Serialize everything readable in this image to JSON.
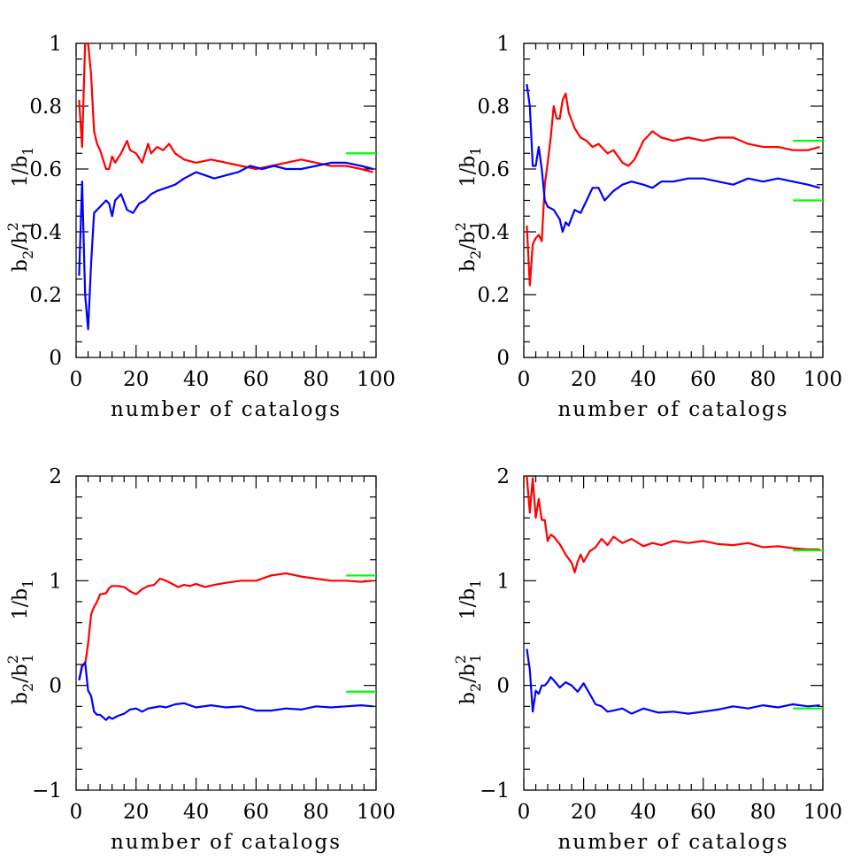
{
  "colors": {
    "series_red": "#ff0000",
    "series_blue": "#0000ff",
    "reference_green": "#00ff00"
  },
  "chart_data": [
    {
      "type": "line",
      "xlabel": "number of catalogs",
      "ylabel_top": [
        "1/b",
        "1"
      ],
      "ylabel_bottom": [
        "b",
        "2",
        "/b",
        "2",
        "1"
      ],
      "xlim": [
        0,
        100
      ],
      "ylim": [
        0,
        1
      ],
      "xticks": [
        0,
        20,
        40,
        60,
        80,
        100
      ],
      "yticks": [
        0,
        0.2,
        0.4,
        0.6,
        0.8,
        1
      ],
      "ytick_labels": [
        "0",
        "0.2",
        "0.4",
        "0.6",
        "0.8",
        "1"
      ],
      "series": [
        {
          "color": "red",
          "x": [
            1,
            2,
            3,
            4,
            5,
            6,
            7,
            8,
            10,
            11,
            12,
            13,
            15,
            17,
            18,
            20,
            22,
            24,
            25,
            27,
            29,
            31,
            33,
            36,
            40,
            45,
            50,
            55,
            60,
            65,
            70,
            75,
            80,
            85,
            90,
            95,
            99
          ],
          "y": [
            0.82,
            0.67,
            1.0,
            1.0,
            0.9,
            0.72,
            0.68,
            0.66,
            0.6,
            0.6,
            0.64,
            0.62,
            0.65,
            0.69,
            0.66,
            0.65,
            0.62,
            0.68,
            0.65,
            0.67,
            0.66,
            0.68,
            0.65,
            0.63,
            0.62,
            0.63,
            0.62,
            0.61,
            0.6,
            0.61,
            0.62,
            0.63,
            0.62,
            0.61,
            0.61,
            0.6,
            0.59
          ]
        },
        {
          "color": "blue",
          "x": [
            1,
            2,
            3,
            4,
            5,
            6,
            7,
            8,
            10,
            11,
            12,
            13,
            15,
            17,
            19,
            21,
            23,
            25,
            27,
            30,
            33,
            36,
            40,
            43,
            46,
            50,
            54,
            58,
            62,
            66,
            70,
            75,
            80,
            85,
            90,
            95,
            99
          ],
          "y": [
            0.26,
            0.56,
            0.2,
            0.09,
            0.3,
            0.46,
            0.47,
            0.48,
            0.5,
            0.49,
            0.45,
            0.5,
            0.52,
            0.47,
            0.46,
            0.49,
            0.5,
            0.52,
            0.53,
            0.54,
            0.55,
            0.57,
            0.59,
            0.58,
            0.57,
            0.58,
            0.59,
            0.61,
            0.6,
            0.61,
            0.6,
            0.6,
            0.61,
            0.62,
            0.62,
            0.61,
            0.6
          ]
        }
      ],
      "reference_lines": [
        {
          "y": 0.65,
          "x": [
            90,
            100
          ]
        }
      ]
    },
    {
      "type": "line",
      "xlabel": "number of catalogs",
      "ylabel_top": [
        "1/b",
        "1"
      ],
      "ylabel_bottom": [
        "b",
        "2",
        "/b",
        "2",
        "1"
      ],
      "xlim": [
        0,
        100
      ],
      "ylim": [
        0,
        1
      ],
      "xticks": [
        0,
        20,
        40,
        60,
        80,
        100
      ],
      "yticks": [
        0,
        0.2,
        0.4,
        0.6,
        0.8,
        1
      ],
      "ytick_labels": [
        "0",
        "0.2",
        "0.4",
        "0.6",
        "0.8",
        "1"
      ],
      "series": [
        {
          "color": "red",
          "x": [
            1,
            2,
            3,
            4,
            5,
            6,
            7,
            8,
            9,
            10,
            11,
            12,
            13,
            14,
            15,
            17,
            19,
            21,
            23,
            25,
            28,
            30,
            33,
            35,
            37,
            40,
            43,
            46,
            50,
            55,
            60,
            65,
            70,
            75,
            80,
            85,
            90,
            95,
            99
          ],
          "y": [
            0.42,
            0.23,
            0.36,
            0.38,
            0.39,
            0.37,
            0.55,
            0.62,
            0.7,
            0.8,
            0.76,
            0.76,
            0.82,
            0.84,
            0.78,
            0.73,
            0.7,
            0.69,
            0.67,
            0.68,
            0.65,
            0.66,
            0.62,
            0.61,
            0.63,
            0.69,
            0.72,
            0.7,
            0.69,
            0.7,
            0.69,
            0.7,
            0.7,
            0.68,
            0.67,
            0.67,
            0.66,
            0.66,
            0.67
          ]
        },
        {
          "color": "blue",
          "x": [
            1,
            2,
            3,
            4,
            5,
            6,
            7,
            8,
            10,
            12,
            13,
            14,
            15,
            17,
            19,
            21,
            23,
            25,
            27,
            30,
            33,
            36,
            40,
            43,
            46,
            50,
            55,
            60,
            65,
            70,
            75,
            80,
            85,
            90,
            95,
            99
          ],
          "y": [
            0.87,
            0.8,
            0.61,
            0.61,
            0.67,
            0.6,
            0.5,
            0.48,
            0.47,
            0.44,
            0.4,
            0.43,
            0.42,
            0.47,
            0.46,
            0.5,
            0.54,
            0.54,
            0.5,
            0.53,
            0.55,
            0.56,
            0.55,
            0.54,
            0.56,
            0.56,
            0.57,
            0.57,
            0.56,
            0.55,
            0.57,
            0.56,
            0.57,
            0.56,
            0.55,
            0.54
          ]
        }
      ],
      "reference_lines": [
        {
          "y": 0.69,
          "x": [
            90,
            100
          ]
        },
        {
          "y": 0.5,
          "x": [
            90,
            100
          ]
        }
      ]
    },
    {
      "type": "line",
      "xlabel": "number of catalogs",
      "ylabel_top": [
        "1/b",
        "1"
      ],
      "ylabel_bottom": [
        "b",
        "2",
        "/b",
        "2",
        "1"
      ],
      "xlim": [
        0,
        100
      ],
      "ylim": [
        -1,
        2
      ],
      "xticks": [
        0,
        20,
        40,
        60,
        80,
        100
      ],
      "yticks": [
        -1,
        0,
        1,
        2
      ],
      "ytick_labels": [
        "−1",
        "0",
        "1",
        "2"
      ],
      "series": [
        {
          "color": "red",
          "x": [
            1,
            2,
            3,
            4,
            5,
            6,
            7,
            8,
            10,
            11,
            12,
            14,
            16,
            18,
            20,
            22,
            24,
            26,
            28,
            30,
            32,
            34,
            36,
            38,
            40,
            43,
            46,
            50,
            55,
            60,
            65,
            70,
            75,
            80,
            85,
            90,
            95,
            99
          ],
          "y": [
            0.05,
            0.2,
            0.2,
            0.4,
            0.68,
            0.75,
            0.8,
            0.87,
            0.88,
            0.93,
            0.95,
            0.95,
            0.94,
            0.9,
            0.87,
            0.92,
            0.95,
            0.96,
            1.02,
            1.0,
            0.97,
            0.94,
            0.96,
            0.95,
            0.97,
            0.94,
            0.96,
            0.98,
            1.0,
            1.0,
            1.05,
            1.07,
            1.04,
            1.02,
            1.0,
            1.0,
            0.99,
            1.0
          ]
        },
        {
          "color": "blue",
          "x": [
            1,
            2,
            3,
            4,
            5,
            6,
            7,
            8,
            10,
            11,
            12,
            14,
            16,
            18,
            20,
            22,
            24,
            26,
            28,
            30,
            33,
            36,
            40,
            45,
            50,
            55,
            60,
            65,
            70,
            75,
            80,
            85,
            90,
            95,
            99
          ],
          "y": [
            0.05,
            0.18,
            0.22,
            -0.05,
            -0.1,
            -0.25,
            -0.28,
            -0.28,
            -0.33,
            -0.3,
            -0.32,
            -0.29,
            -0.27,
            -0.23,
            -0.22,
            -0.25,
            -0.22,
            -0.21,
            -0.2,
            -0.21,
            -0.18,
            -0.17,
            -0.21,
            -0.19,
            -0.21,
            -0.2,
            -0.24,
            -0.24,
            -0.22,
            -0.23,
            -0.2,
            -0.21,
            -0.2,
            -0.19,
            -0.2
          ]
        }
      ],
      "reference_lines": [
        {
          "y": 1.05,
          "x": [
            90,
            100
          ]
        },
        {
          "y": -0.06,
          "x": [
            90,
            100
          ]
        }
      ]
    },
    {
      "type": "line",
      "xlabel": "number of catalogs",
      "ylabel_top": [
        "1/b",
        "1"
      ],
      "ylabel_bottom": [
        "b",
        "2",
        "/b",
        "2",
        "1"
      ],
      "xlim": [
        0,
        100
      ],
      "ylim": [
        -1,
        2
      ],
      "xticks": [
        0,
        20,
        40,
        60,
        80,
        100
      ],
      "yticks": [
        -1,
        0,
        1,
        2
      ],
      "ytick_labels": [
        "−1",
        "0",
        "1",
        "2"
      ],
      "series": [
        {
          "color": "red",
          "x": [
            1,
            2,
            3,
            4,
            5,
            6,
            7,
            8,
            9,
            10,
            12,
            14,
            16,
            17,
            18,
            19,
            20,
            22,
            24,
            26,
            28,
            30,
            33,
            36,
            40,
            43,
            46,
            50,
            55,
            60,
            65,
            70,
            75,
            80,
            85,
            90,
            95,
            99
          ],
          "y": [
            2.0,
            1.65,
            1.98,
            1.6,
            1.78,
            1.58,
            1.58,
            1.38,
            1.44,
            1.42,
            1.35,
            1.25,
            1.17,
            1.08,
            1.18,
            1.25,
            1.18,
            1.28,
            1.32,
            1.4,
            1.34,
            1.42,
            1.36,
            1.4,
            1.33,
            1.36,
            1.34,
            1.38,
            1.36,
            1.38,
            1.35,
            1.34,
            1.36,
            1.32,
            1.33,
            1.31,
            1.3,
            1.3
          ]
        },
        {
          "color": "blue",
          "x": [
            1,
            2,
            3,
            4,
            5,
            6,
            7,
            8,
            9,
            10,
            12,
            14,
            16,
            18,
            20,
            22,
            24,
            26,
            28,
            30,
            33,
            36,
            40,
            45,
            50,
            55,
            60,
            65,
            70,
            75,
            80,
            85,
            90,
            95,
            99
          ],
          "y": [
            0.35,
            0.15,
            -0.25,
            -0.05,
            -0.08,
            0.0,
            0.0,
            0.03,
            0.08,
            0.05,
            -0.02,
            0.03,
            0.0,
            -0.06,
            0.02,
            -0.08,
            -0.18,
            -0.2,
            -0.25,
            -0.24,
            -0.22,
            -0.27,
            -0.22,
            -0.26,
            -0.25,
            -0.27,
            -0.25,
            -0.23,
            -0.2,
            -0.22,
            -0.19,
            -0.21,
            -0.18,
            -0.2,
            -0.19
          ]
        }
      ],
      "reference_lines": [
        {
          "y": 1.29,
          "x": [
            90,
            100
          ]
        },
        {
          "y": -0.22,
          "x": [
            90,
            100
          ]
        }
      ]
    }
  ]
}
